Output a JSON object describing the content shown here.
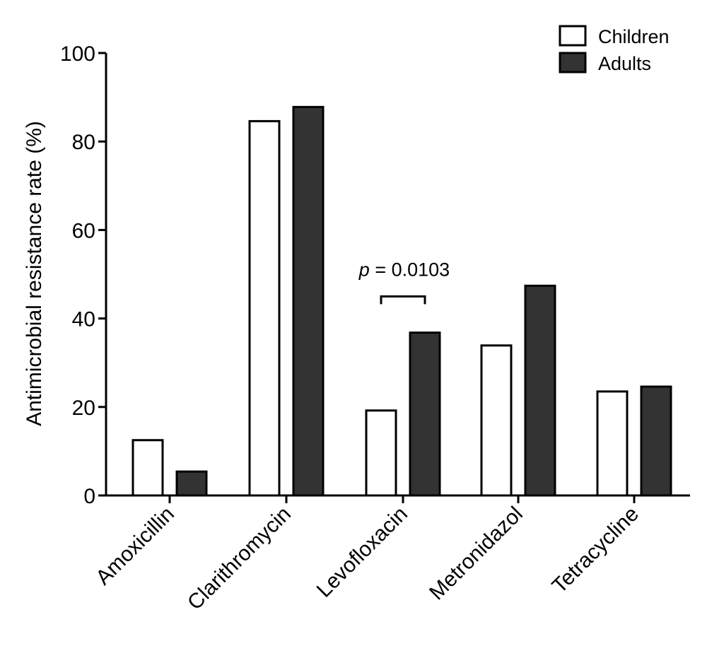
{
  "chart_data": {
    "type": "bar",
    "title": "",
    "ylabel": "Antimicrobial resistance rate (%)",
    "xlabel": "",
    "ylim": [
      0,
      100
    ],
    "yticks": [
      0,
      20,
      40,
      60,
      80,
      100
    ],
    "categories": [
      "Amoxicillin",
      "Clarithromycin",
      "Levofloxacin",
      "Metronidazol",
      "Tetracycline"
    ],
    "series": [
      {
        "name": "Children",
        "color": "#ffffff",
        "values": [
          12.5,
          84.6,
          19.2,
          33.9,
          23.5
        ]
      },
      {
        "name": "Adults",
        "color": "#333333",
        "values": [
          5.4,
          87.8,
          36.8,
          47.4,
          24.6
        ]
      }
    ],
    "annotation": {
      "italic": "p",
      "text": " = 0.0103",
      "category": "Levofloxacin",
      "bracket_y": 44.5
    },
    "legend_position": "top-right"
  }
}
